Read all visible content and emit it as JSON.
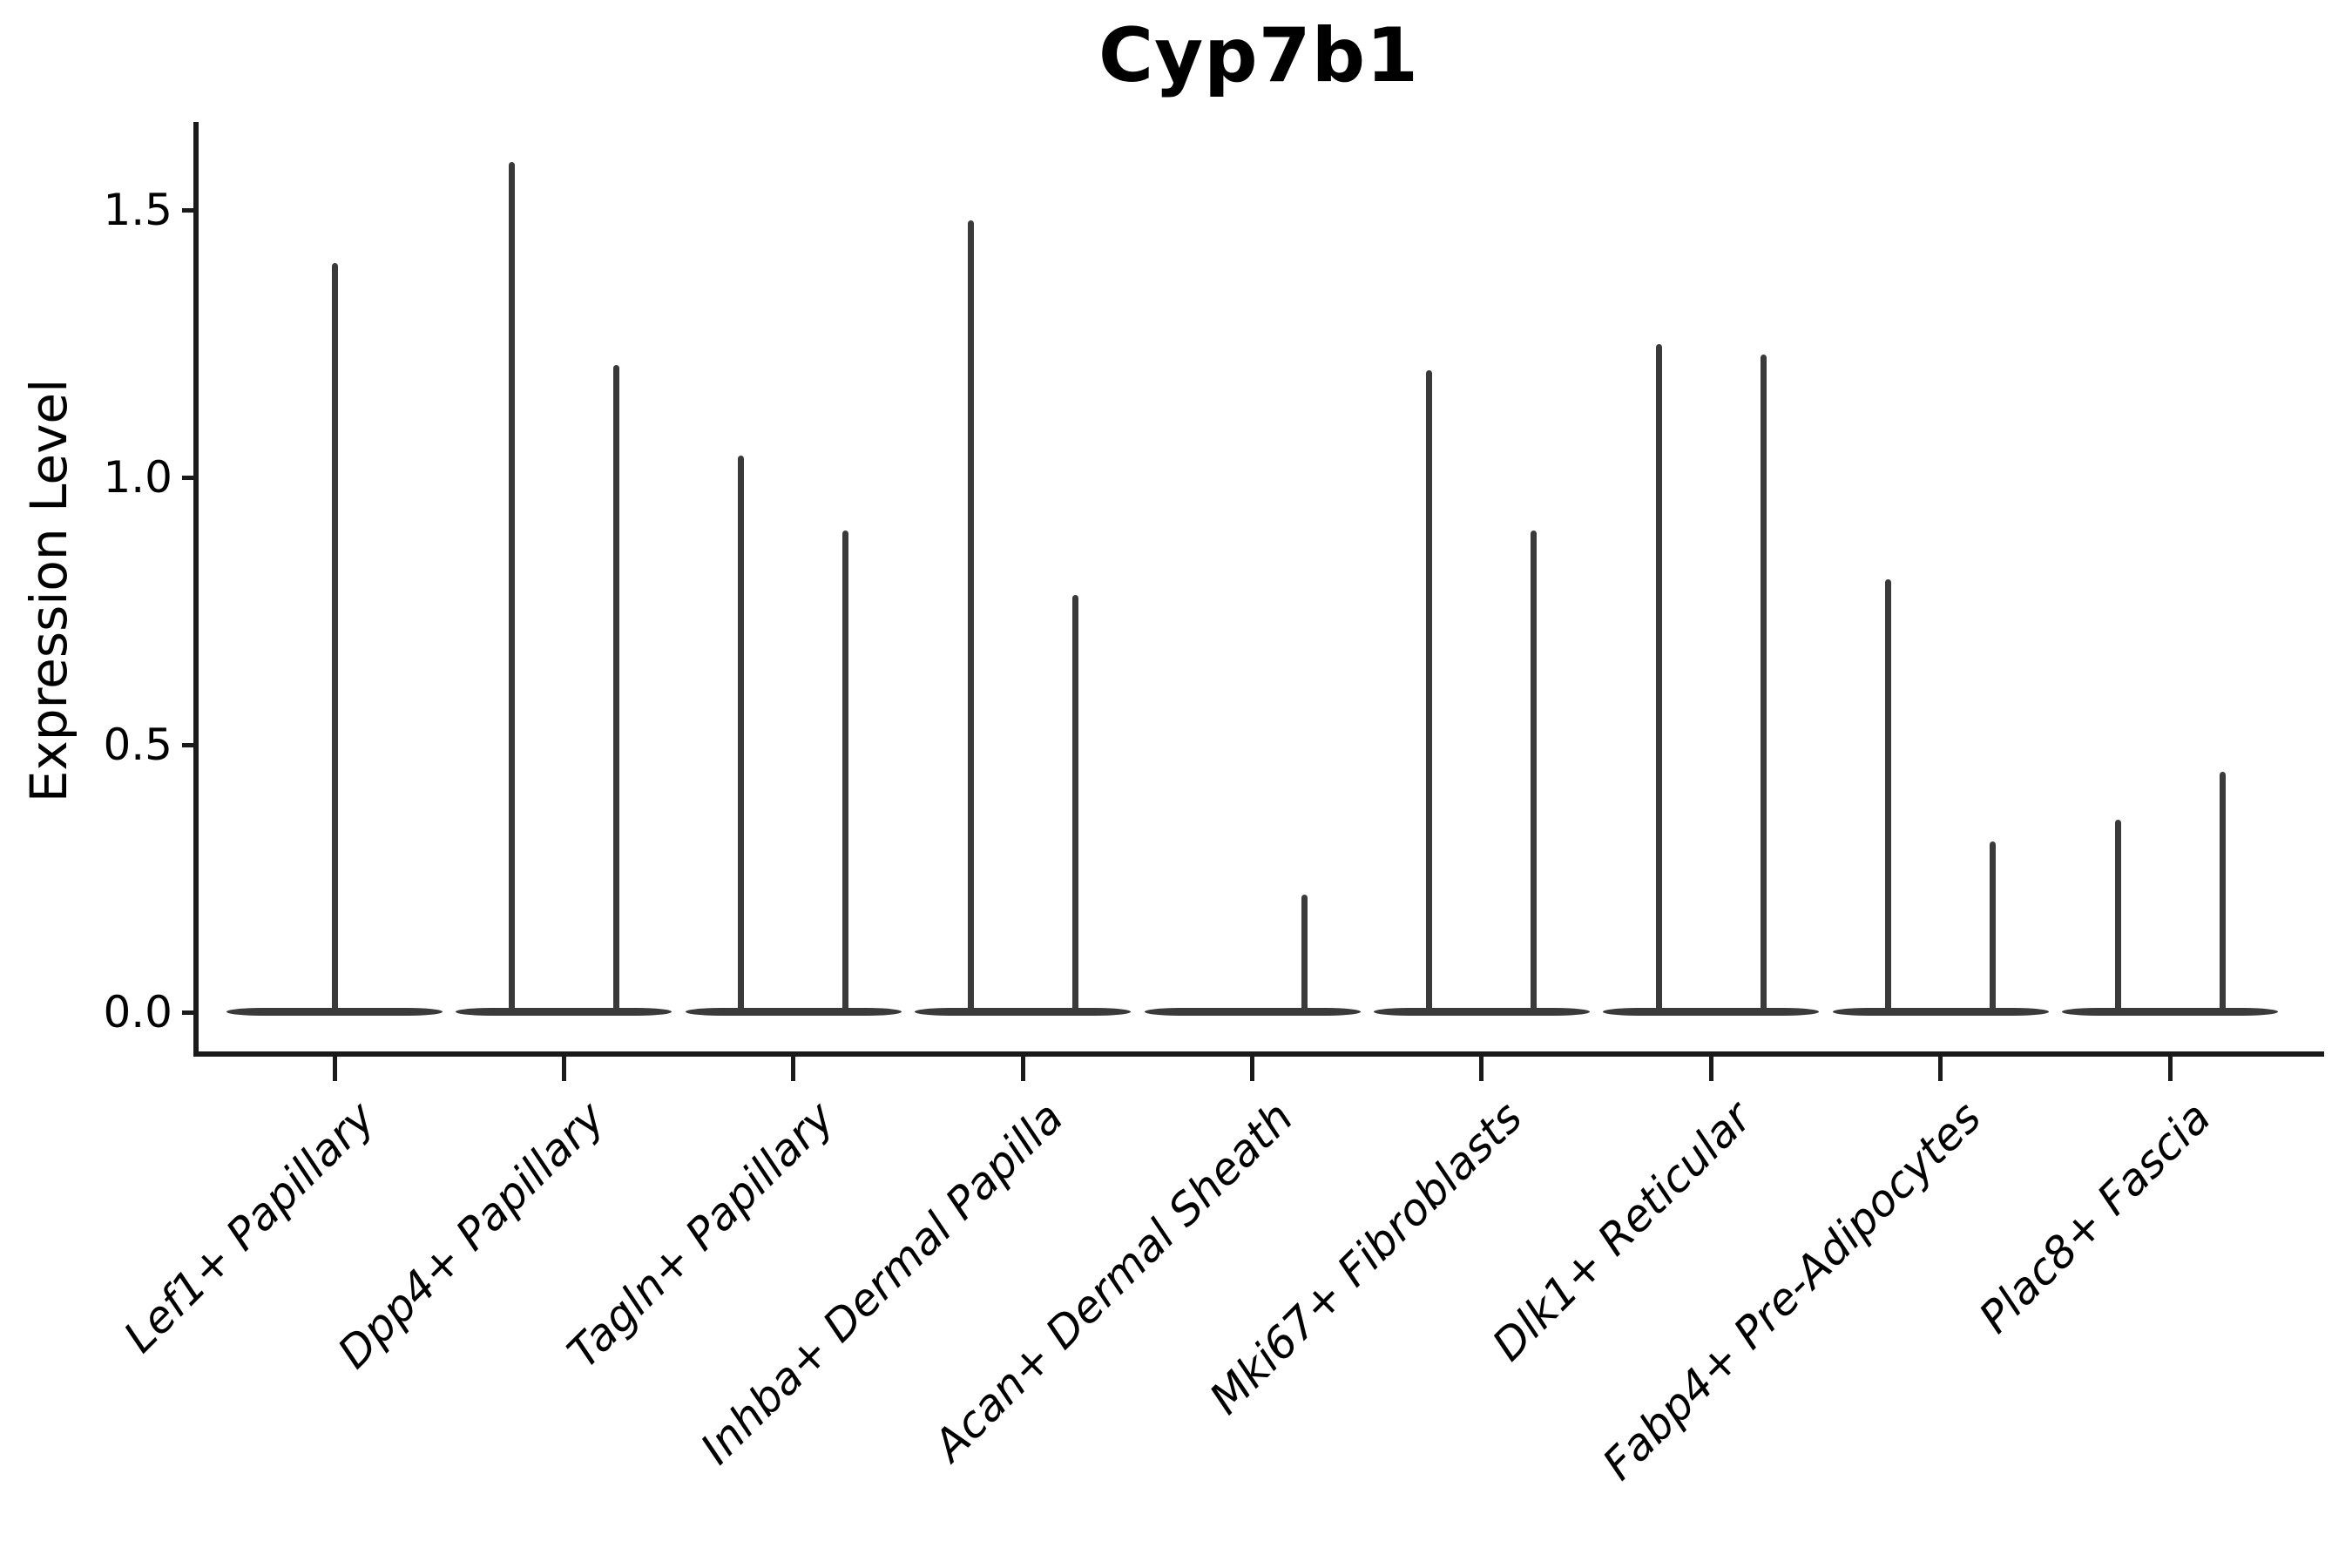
{
  "chart_data": {
    "type": "violin",
    "title": "Cyp7b1",
    "ylabel": "Expression Level",
    "xlabel": "",
    "grid": false,
    "legend": null,
    "ylim": [
      -0.08,
      1.66
    ],
    "ytick_labels": [
      "0.0",
      "0.5",
      "1.0",
      "1.5"
    ],
    "ytick_values": [
      0.0,
      0.5,
      1.0,
      1.5
    ],
    "categories": [
      "Lef1+ Papillary",
      "Dpp4+ Papillary",
      "Tagln+ Papillary",
      "Inhba+ Dermal Papilla",
      "Acan+ Dermal Sheath",
      "Mki67+ Fibroblasts",
      "Dlk1+ Reticular",
      "Fabp4+ Pre-Adipocytes",
      "Plac8+ Fascia"
    ],
    "violins": [
      {
        "category": "Lef1+ Papillary",
        "spikes": [
          {
            "slot": "center",
            "max": 1.4
          }
        ]
      },
      {
        "category": "Dpp4+ Papillary",
        "spikes": [
          {
            "slot": "left",
            "max": 1.59
          },
          {
            "slot": "right",
            "max": 1.21
          }
        ]
      },
      {
        "category": "Tagln+ Papillary",
        "spikes": [
          {
            "slot": "left",
            "max": 1.04
          },
          {
            "slot": "right",
            "max": 0.9
          }
        ]
      },
      {
        "category": "Inhba+ Dermal Papilla",
        "spikes": [
          {
            "slot": "left",
            "max": 1.48
          },
          {
            "slot": "right",
            "max": 0.78
          }
        ]
      },
      {
        "category": "Acan+ Dermal Sheath",
        "spikes": [
          {
            "slot": "right",
            "max": 0.22
          }
        ]
      },
      {
        "category": "Mki67+ Fibroblasts",
        "spikes": [
          {
            "slot": "left",
            "max": 1.2
          },
          {
            "slot": "right",
            "max": 0.9
          }
        ]
      },
      {
        "category": "Dlk1+ Reticular",
        "spikes": [
          {
            "slot": "left",
            "max": 1.25
          },
          {
            "slot": "right",
            "max": 1.23
          }
        ]
      },
      {
        "category": "Fabp4+ Pre-Adipocytes",
        "spikes": [
          {
            "slot": "left",
            "max": 0.81
          },
          {
            "slot": "right",
            "max": 0.32
          }
        ]
      },
      {
        "category": "Plac8+ Fascia",
        "spikes": [
          {
            "slot": "left",
            "max": 0.36
          },
          {
            "slot": "right",
            "max": 0.45
          }
        ]
      }
    ]
  },
  "colors": {
    "background": "#ffffff",
    "axis": "#1a1a1a",
    "text": "#000000",
    "violin": "#3a3a3a"
  }
}
